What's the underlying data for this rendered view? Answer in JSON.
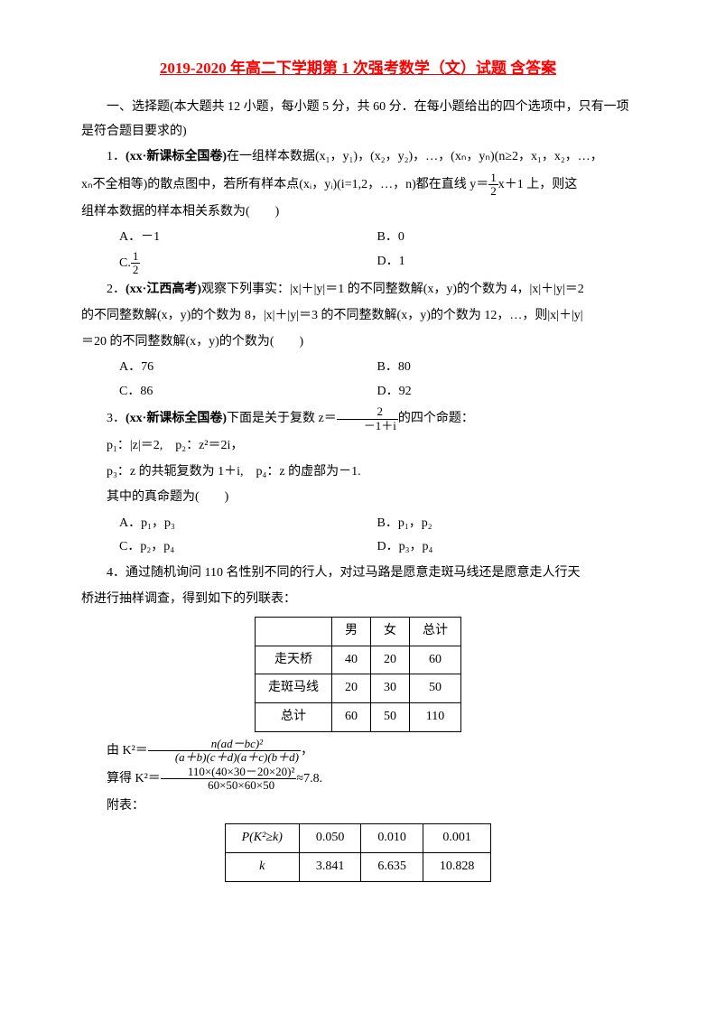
{
  "title": "2019-2020 年高二下学期第 1 次强考数学（文）试题 含答案",
  "section1_intro": "一、选择题(本大题共 12 小题，每小题 5 分，共 60 分．在每小题给出的四个选项中，只有一项是符合题目要求的)",
  "q1_src": "(xx·新课标全国卷)",
  "q1_text_a": "1．",
  "q1_text_b": "在一组样本数据(x₁，y₁)，(x₂，y₂)，…，(xₙ，yₙ)(n≥2，x₁，x₂，…，",
  "q1_text_c": "xₙ不全相等)的散点图中，若所有样本点(xᵢ，yᵢ)(i=1,2，…，n)都在直线 y＝",
  "q1_text_d": "x＋1 上，则这",
  "q1_text_e": "组样本数据的样本相关系数为(　　)",
  "q1_frac_num": "1",
  "q1_frac_den": "2",
  "q1_optA": "A．－1",
  "q1_optB": "B．0",
  "q1_optC_pre": "C.",
  "q1_optC_num": "1",
  "q1_optC_den": "2",
  "q1_optD": "D．1",
  "q2_src": "(xx·江西高考)",
  "q2_a": "2．",
  "q2_b": "观察下列事实：|x|＋|y|＝1 的不同整数解(x，y)的个数为 4，|x|＋|y|＝2",
  "q2_c": "的不同整数解(x，y)的个数为 8，|x|＋|y|＝3 的不同整数解(x，y)的个数为 12，…，则|x|＋|y|",
  "q2_d": "＝20 的不同整数解(x，y)的个数为(　　)",
  "q2_optA": "A．76",
  "q2_optB": "B．80",
  "q2_optC": "C．86",
  "q2_optD": "D．92",
  "q3_src": "(xx·新课标全国卷)",
  "q3_a": "3．",
  "q3_b": "下面是关于复数 z＝",
  "q3_c": "的四个命题：",
  "q3_frac_num": "2",
  "q3_frac_den": "－1＋i",
  "q3_p1": "p₁：|z|＝2,　p₂：z²＝2i，",
  "q3_p2": "p₃：z 的共轭复数为 1＋i,　p₄：z 的虚部为－1.",
  "q3_p3": "其中的真命题为(　　)",
  "q3_optA": "A．p₁，p₃",
  "q3_optB": "B．p₁，p₂",
  "q3_optC": "C．p₂，p₄",
  "q3_optD": "D．p₃，p₄",
  "q4_a": "4．通过随机询问 110 名性别不同的行人，对过马路是愿意走斑马线还是愿意走人行天",
  "q4_b": "桥进行抽样调查，得到如下的列联表：",
  "table1": {
    "cols": [
      "",
      "男",
      "女",
      "总计"
    ],
    "rows": [
      [
        "走天桥",
        "40",
        "20",
        "60"
      ],
      [
        "走斑马线",
        "20",
        "30",
        "50"
      ],
      [
        "总计",
        "60",
        "50",
        "110"
      ]
    ]
  },
  "formula1_lhs": "由 K²＝",
  "formula1_num": "n(ad－bc)²",
  "formula1_den": "(a＋b)(c＋d)(a＋c)(b＋d)",
  "formula1_end": "，",
  "formula2_lhs": "算得 K²＝",
  "formula2_num": "110×(40×30－20×20)²",
  "formula2_den": "60×50×60×50",
  "formula2_end": "≈7.8.",
  "appendix_label": "附表：",
  "table2": {
    "cols": [
      "P(K²≥k)",
      "0.050",
      "0.010",
      "0.001"
    ],
    "rows": [
      [
        "k",
        "3.841",
        "6.635",
        "10.828"
      ]
    ]
  },
  "colors": {
    "title": "#ff0000",
    "text": "#000000",
    "background": "#ffffff",
    "border": "#000000"
  }
}
